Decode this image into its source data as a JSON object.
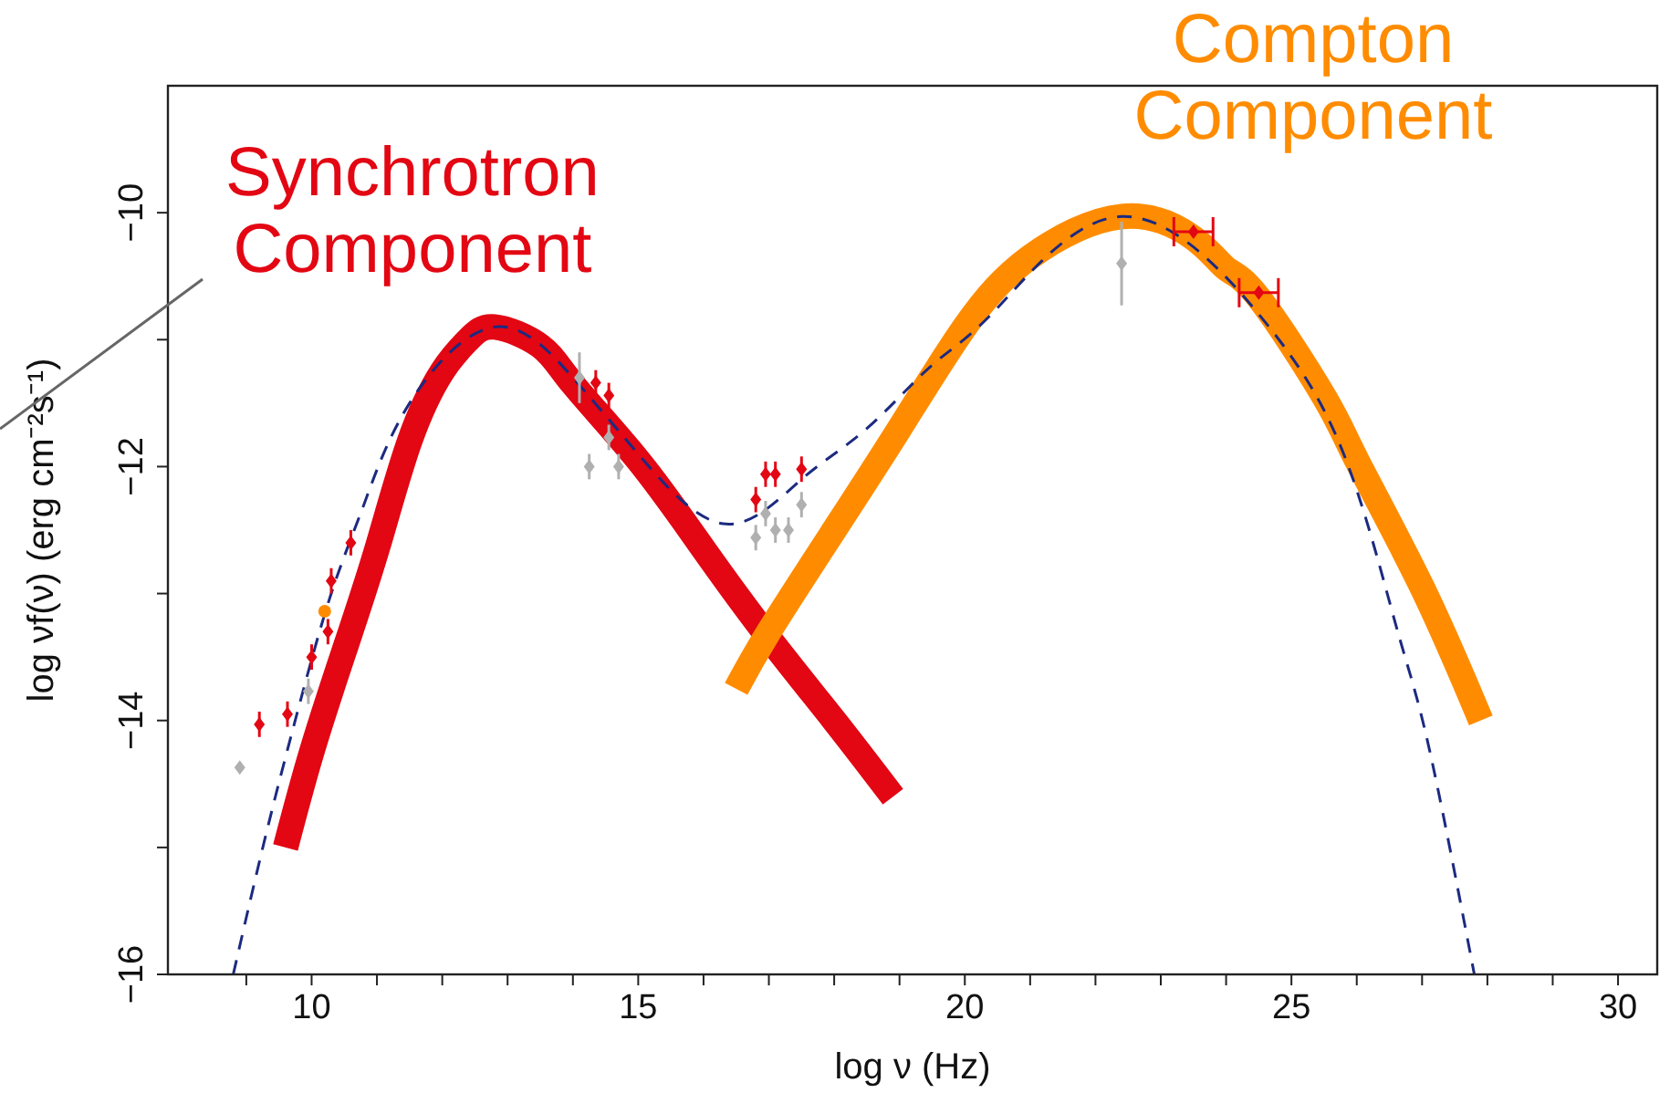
{
  "chart_data": {
    "type": "line",
    "xlabel": "log ν (Hz)",
    "ylabel": "log νf(ν) (erg cm⁻²s⁻¹)",
    "xlim": [
      7.8,
      30.6
    ],
    "ylim": [
      -16,
      -9
    ],
    "xticks": [
      {
        "value": 9,
        "label": null
      },
      10,
      {
        "value": 11,
        "label": null
      },
      {
        "value": 12,
        "label": null
      },
      {
        "value": 13,
        "label": null
      },
      {
        "value": 14,
        "label": null
      },
      15,
      {
        "value": 16,
        "label": null
      },
      {
        "value": 17,
        "label": null
      },
      {
        "value": 18,
        "label": null
      },
      {
        "value": 19,
        "label": null
      },
      20,
      {
        "value": 21,
        "label": null
      },
      {
        "value": 22,
        "label": null
      },
      {
        "value": 23,
        "label": null
      },
      {
        "value": 24,
        "label": null
      },
      25,
      {
        "value": 26,
        "label": null
      },
      {
        "value": 27,
        "label": null
      },
      {
        "value": 28,
        "label": null
      },
      {
        "value": 29,
        "label": null
      },
      30
    ],
    "yticks": [
      -16,
      {
        "value": -15,
        "label": null
      },
      -14,
      {
        "value": -13,
        "label": null
      },
      -12,
      {
        "value": -11,
        "label": null
      },
      -10
    ],
    "grid": false,
    "series": [
      {
        "type": "line",
        "name": "Synchrotron Component",
        "color": "#e30613",
        "line_style": "solid",
        "marker": "none",
        "x": [
          9.6,
          10,
          10.5,
          11,
          11.5,
          12,
          12.4,
          12.8,
          13.5,
          14,
          15,
          16,
          17,
          18,
          18.9
        ],
        "values": [
          -15.0,
          -14.25,
          -13.45,
          -12.65,
          -11.8,
          -11.25,
          -11.0,
          -10.9,
          -11.05,
          -11.35,
          -11.95,
          -12.65,
          -13.35,
          -14.0,
          -14.6
        ]
      },
      {
        "type": "line",
        "name": "Compton Component",
        "color": "#ff8c00",
        "line_style": "solid",
        "marker": "none",
        "x": [
          16.5,
          17,
          18,
          19,
          20,
          21,
          22.4,
          23.5,
          24,
          24.5,
          25.5,
          26,
          27,
          27.9
        ],
        "values": [
          -13.75,
          -13.3,
          -12.5,
          -11.7,
          -10.9,
          -10.35,
          -10.03,
          -10.2,
          -10.44,
          -10.67,
          -11.45,
          -11.95,
          -12.95,
          -14.0
        ]
      },
      {
        "type": "line",
        "color": "#1c2a80",
        "line_style": "dashed",
        "marker": "none",
        "x": [
          8.8,
          9.3,
          9.8,
          10.3,
          10.8,
          11.5,
          12.8,
          14,
          15,
          16.3,
          17.5,
          18.5,
          19.5,
          20.5,
          22.4,
          24.5,
          25.8,
          26.6,
          27.1,
          27.8
        ],
        "values": [
          -16.0,
          -14.9,
          -13.9,
          -13.0,
          -12.3,
          -11.5,
          -10.9,
          -11.3,
          -11.9,
          -12.45,
          -12.1,
          -11.7,
          -11.2,
          -10.75,
          -10.03,
          -10.8,
          -11.9,
          -13.25,
          -14.2,
          -16.0
        ]
      },
      {
        "type": "scatter",
        "color": "#e30613",
        "marker": "diamond",
        "x": [
          9.2,
          9.63,
          10.0,
          10.25,
          10.3,
          10.6,
          14.35,
          14.55,
          16.8,
          16.95,
          17.1,
          17.5,
          23.5,
          24.5
        ],
        "values": [
          -14.03,
          -13.95,
          -13.5,
          -13.3,
          -12.9,
          -12.6,
          -11.34,
          -11.44,
          -12.26,
          -12.06,
          -12.06,
          -12.02,
          -10.15,
          -10.63
        ],
        "errors": [
          0.1,
          0.1,
          0.1,
          0.1,
          0.1,
          0.1,
          0.1,
          0.1,
          0.1,
          0.1,
          0.1,
          0.1,
          null,
          null
        ],
        "xerrors": [
          null,
          null,
          null,
          null,
          null,
          null,
          null,
          null,
          null,
          null,
          null,
          null,
          0.3,
          0.3
        ]
      },
      {
        "type": "scatter",
        "color": "#b0b0b0",
        "marker": "diamond",
        "x": [
          8.9,
          9.95,
          14.1,
          14.25,
          14.55,
          14.7,
          16.8,
          16.95,
          17.1,
          17.3,
          17.5,
          22.4
        ],
        "values": [
          -14.37,
          -13.77,
          -11.3,
          -12.0,
          -11.77,
          -12.0,
          -12.56,
          -12.37,
          -12.5,
          -12.5,
          -12.3,
          -10.4
        ],
        "errors": [
          null,
          0.1,
          0.2,
          0.1,
          0.1,
          0.1,
          0.1,
          0.1,
          0.1,
          0.1,
          0.1,
          0.33
        ]
      },
      {
        "type": "scatter",
        "color": "#ff8c00",
        "marker": "circle",
        "x": [
          10.2
        ],
        "values": [
          -13.14
        ]
      }
    ]
  }
}
